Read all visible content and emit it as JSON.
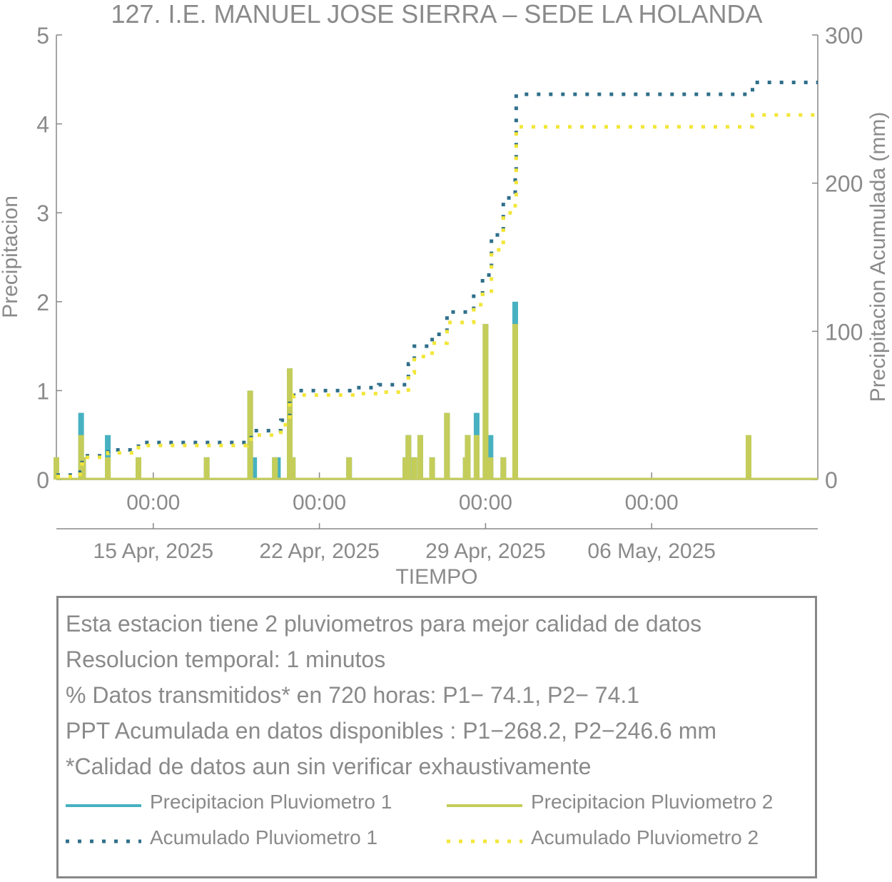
{
  "colors": {
    "p1_bar": "#47b1c1",
    "p2_bar": "#c4cd5a",
    "acc1": "#2f6f8a",
    "acc2": "#f2e63a",
    "axis": "#888888",
    "text": "#8a8a8a"
  },
  "chart_data": {
    "type": "bar+line",
    "title": "127. I.E. MANUEL JOSE SIERRA – SEDE LA HOLANDA",
    "xlabel": "TIEMPO",
    "ylabel": "Precipitacion",
    "y2label": "Precipitacion Acumulada (mm)",
    "x_range": [
      "2025-04-10T22:00",
      "2025-05-13T00:00"
    ],
    "ylim": [
      0,
      5
    ],
    "y2lim": [
      0,
      300
    ],
    "yticks": [
      "0",
      "1",
      "2",
      "3",
      "4",
      "5"
    ],
    "y2ticks": [
      "0",
      "100",
      "200",
      "300"
    ],
    "xticks": [
      {
        "date": "2025-04-15T00:00",
        "label": "00:00",
        "date_label": "15 Apr, 2025"
      },
      {
        "date": "2025-04-22T00:00",
        "label": "00:00",
        "date_label": "22 Apr, 2025"
      },
      {
        "date": "2025-04-29T00:00",
        "label": "00:00",
        "date_label": "29 Apr, 2025"
      },
      {
        "date": "2025-05-06T00:00",
        "label": "00:00",
        "date_label": "06 May, 2025"
      }
    ],
    "series": [
      {
        "name": "Precipitacion Pluviometro 1",
        "kind": "bar",
        "color": "#47b1c1",
        "points": [
          [
            "2025-04-10T22:00",
            0.25
          ],
          [
            "2025-04-11T23:00",
            0.75
          ],
          [
            "2025-04-12T01:00",
            0.25
          ],
          [
            "2025-04-13T02:00",
            0.5
          ],
          [
            "2025-04-14T09:00",
            0.25
          ],
          [
            "2025-04-17T06:00",
            0.25
          ],
          [
            "2025-04-19T02:00",
            1.0
          ],
          [
            "2025-04-19T06:00",
            0.25
          ],
          [
            "2025-04-20T03:00",
            0.25
          ],
          [
            "2025-04-20T06:00",
            0.25
          ],
          [
            "2025-04-20T18:00",
            1.25
          ],
          [
            "2025-04-20T21:00",
            0.25
          ],
          [
            "2025-04-23T06:00",
            0.25
          ],
          [
            "2025-04-25T15:00",
            0.25
          ],
          [
            "2025-04-25T18:00",
            0.5
          ],
          [
            "2025-04-26T00:00",
            0.25
          ],
          [
            "2025-04-26T06:00",
            0.5
          ],
          [
            "2025-04-26T18:00",
            0.25
          ],
          [
            "2025-04-27T09:00",
            0.75
          ],
          [
            "2025-04-28T04:00",
            0.25
          ],
          [
            "2025-04-28T06:00",
            0.5
          ],
          [
            "2025-04-28T15:00",
            0.75
          ],
          [
            "2025-04-29T00:00",
            1.75
          ],
          [
            "2025-04-29T05:00",
            0.5
          ],
          [
            "2025-04-29T18:00",
            0.25
          ],
          [
            "2025-04-30T06:00",
            2.0
          ],
          [
            "2025-05-10T02:00",
            0.25
          ]
        ]
      },
      {
        "name": "Precipitacion Pluviometro 2",
        "kind": "bar",
        "color": "#c4cd5a",
        "points": [
          [
            "2025-04-10T22:00",
            0.25
          ],
          [
            "2025-04-11T23:00",
            0.5
          ],
          [
            "2025-04-12T01:00",
            0.25
          ],
          [
            "2025-04-13T02:00",
            0.25
          ],
          [
            "2025-04-14T09:00",
            0.25
          ],
          [
            "2025-04-17T06:00",
            0.25
          ],
          [
            "2025-04-19T02:00",
            1.0
          ],
          [
            "2025-04-20T03:00",
            0.25
          ],
          [
            "2025-04-20T18:00",
            1.25
          ],
          [
            "2025-04-20T21:00",
            0.25
          ],
          [
            "2025-04-23T06:00",
            0.25
          ],
          [
            "2025-04-25T15:00",
            0.25
          ],
          [
            "2025-04-25T18:00",
            0.5
          ],
          [
            "2025-04-26T00:00",
            0.25
          ],
          [
            "2025-04-26T06:00",
            0.5
          ],
          [
            "2025-04-26T18:00",
            0.25
          ],
          [
            "2025-04-27T09:00",
            0.75
          ],
          [
            "2025-04-28T04:00",
            0.25
          ],
          [
            "2025-04-28T06:00",
            0.5
          ],
          [
            "2025-04-28T15:00",
            0.5
          ],
          [
            "2025-04-29T00:00",
            1.75
          ],
          [
            "2025-04-29T05:00",
            0.25
          ],
          [
            "2025-04-29T18:00",
            0.25
          ],
          [
            "2025-04-30T06:00",
            1.75
          ],
          [
            "2025-05-10T02:00",
            0.5
          ]
        ]
      },
      {
        "name": "Acumulado Pluviometro 1",
        "kind": "line",
        "style": "dotted",
        "color": "#2f6f8a",
        "points": [
          [
            "2025-04-10T22:00",
            3
          ],
          [
            "2025-04-11T22:00",
            5
          ],
          [
            "2025-04-12T00:00",
            16
          ],
          [
            "2025-04-13T02:00",
            20
          ],
          [
            "2025-04-14T09:00",
            25
          ],
          [
            "2025-04-18T23:00",
            27
          ],
          [
            "2025-04-19T03:00",
            33
          ],
          [
            "2025-04-20T09:00",
            40
          ],
          [
            "2025-04-20T18:00",
            55
          ],
          [
            "2025-04-20T22:00",
            60
          ],
          [
            "2025-04-23T12:00",
            62
          ],
          [
            "2025-04-24T12:00",
            64
          ],
          [
            "2025-04-25T18:00",
            78
          ],
          [
            "2025-04-26T00:00",
            90
          ],
          [
            "2025-04-26T18:00",
            98
          ],
          [
            "2025-04-27T09:00",
            113
          ],
          [
            "2025-04-28T12:00",
            125
          ],
          [
            "2025-04-28T21:00",
            138
          ],
          [
            "2025-04-29T06:00",
            165
          ],
          [
            "2025-04-29T18:00",
            190
          ],
          [
            "2025-04-30T06:00",
            208
          ],
          [
            "2025-04-30T07:00",
            260
          ],
          [
            "2025-05-10T00:00",
            260
          ],
          [
            "2025-05-10T06:00",
            268
          ],
          [
            "2025-05-13T00:00",
            268
          ]
        ]
      },
      {
        "name": "Acumulado Pluviometro 2",
        "kind": "line",
        "style": "dotted",
        "color": "#f2e63a",
        "points": [
          [
            "2025-04-10T22:00",
            2
          ],
          [
            "2025-04-11T22:00",
            5
          ],
          [
            "2025-04-12T00:00",
            15
          ],
          [
            "2025-04-13T02:00",
            18
          ],
          [
            "2025-04-14T09:00",
            23
          ],
          [
            "2025-04-18T23:00",
            25
          ],
          [
            "2025-04-19T03:00",
            30
          ],
          [
            "2025-04-20T09:00",
            37
          ],
          [
            "2025-04-20T18:00",
            52
          ],
          [
            "2025-04-20T22:00",
            57
          ],
          [
            "2025-04-23T12:00",
            58
          ],
          [
            "2025-04-24T12:00",
            59
          ],
          [
            "2025-04-25T18:00",
            72
          ],
          [
            "2025-04-26T00:00",
            83
          ],
          [
            "2025-04-26T18:00",
            92
          ],
          [
            "2025-04-27T09:00",
            106
          ],
          [
            "2025-04-28T12:00",
            118
          ],
          [
            "2025-04-28T21:00",
            125
          ],
          [
            "2025-04-29T06:00",
            155
          ],
          [
            "2025-04-29T18:00",
            180
          ],
          [
            "2025-04-30T06:00",
            190
          ],
          [
            "2025-04-30T07:00",
            238
          ],
          [
            "2025-05-10T00:00",
            238
          ],
          [
            "2025-05-10T06:00",
            246
          ],
          [
            "2025-05-13T00:00",
            246
          ]
        ]
      }
    ]
  },
  "info": {
    "lines": [
      "Esta estacion tiene 2 pluviometros para mejor calidad de datos",
      "Resolucion temporal: 1 minutos",
      "% Datos transmitidos* en 720 horas: P1− 74.1, P2− 74.1",
      "PPT Acumulada en datos disponibles : P1−268.2, P2−246.6 mm",
      "*Calidad de datos aun sin verificar exhaustivamente"
    ],
    "legend": [
      {
        "label": "Precipitacion Pluviometro 1",
        "style": "solid",
        "color": "#47b1c1"
      },
      {
        "label": "Precipitacion Pluviometro 2",
        "style": "solid",
        "color": "#c4cd5a"
      },
      {
        "label": "Acumulado Pluviometro 1",
        "style": "dotted",
        "color": "#2f6f8a"
      },
      {
        "label": "Acumulado Pluviometro 2",
        "style": "dotted",
        "color": "#f2e63a"
      }
    ]
  }
}
